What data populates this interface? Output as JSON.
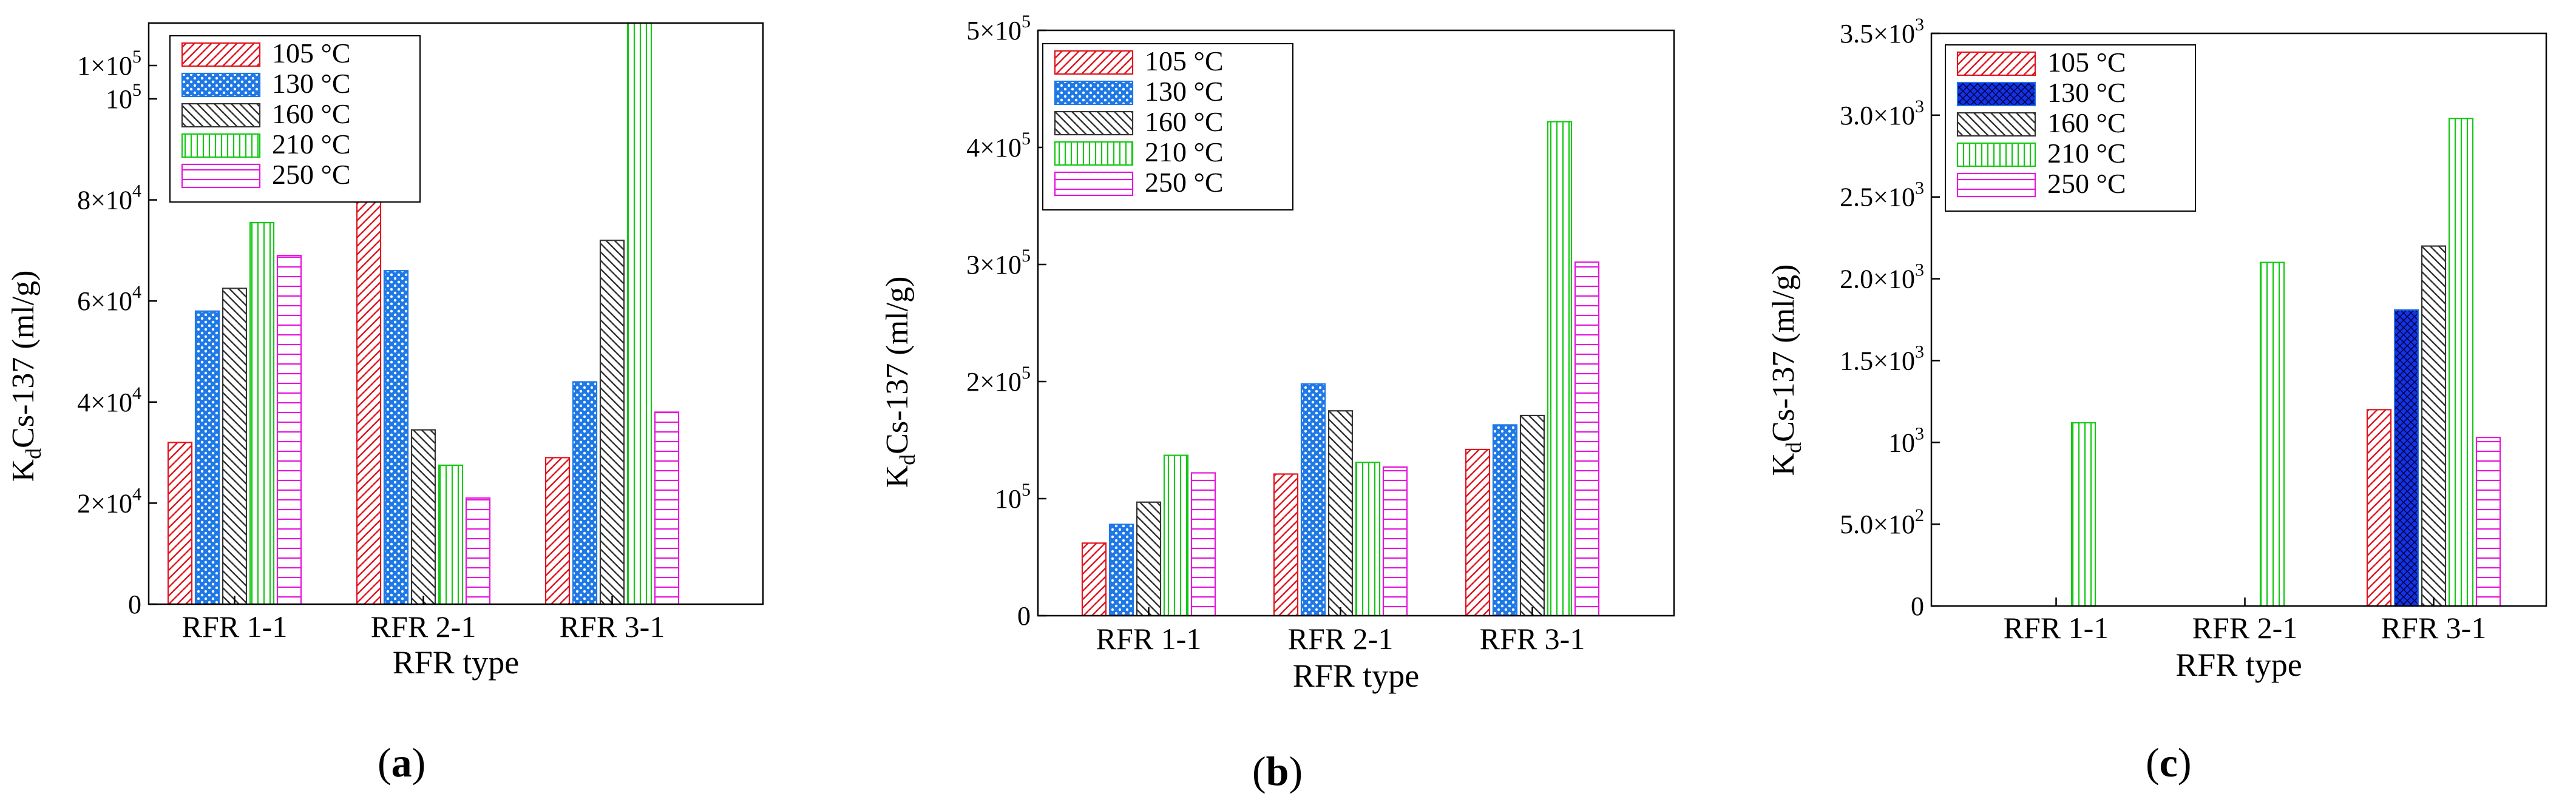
{
  "colors": {
    "c105": "#e0141e",
    "c130": "#1e78e6",
    "c160": "#333333",
    "c210": "#14c814",
    "c250": "#e614dc",
    "c130_solid_fill": "#1432e6"
  },
  "chart_data": [
    {
      "type": "bar",
      "panel_label": "a",
      "categories": [
        "RFR 1-1",
        "RFR 2-1",
        "RFR 3-1"
      ],
      "xlabel": "RFR type",
      "ylabel_main": "K",
      "ylabel_sub": "d",
      "ylabel_rest": "Cs-137 (ml/g)",
      "ylim": [
        0,
        115000
      ],
      "yticks": [
        {
          "value": 0,
          "base": "0",
          "exp": ""
        },
        {
          "value": 20000,
          "base": "2×10",
          "exp": "4"
        },
        {
          "value": 40000,
          "base": "4×10",
          "exp": "4"
        },
        {
          "value": 60000,
          "base": "6×10",
          "exp": "4"
        },
        {
          "value": 80000,
          "base": "8×10",
          "exp": "4"
        },
        {
          "value": 100000,
          "base": "10",
          "exp": "5"
        },
        {
          "value": 120000,
          "base": "1×10",
          "exp": "5"
        }
      ],
      "series": [
        {
          "name": "105 °C",
          "pattern": "diag-right",
          "color": "#e0141e",
          "values": [
            32000,
            85500,
            29000
          ]
        },
        {
          "name": "130 °C",
          "pattern": "crosshatch",
          "color": "#1e78e6",
          "values": [
            58000,
            66000,
            44000
          ]
        },
        {
          "name": "160 °C",
          "pattern": "diag-left",
          "color": "#333333",
          "values": [
            62500,
            34500,
            72000
          ]
        },
        {
          "name": "210 °C",
          "pattern": "vertical",
          "color": "#14c814",
          "values": [
            75500,
            27500,
            115000
          ]
        },
        {
          "name": "250 °C",
          "pattern": "horizontal",
          "color": "#e614dc",
          "values": [
            69000,
            21000,
            38000
          ]
        }
      ]
    },
    {
      "type": "bar",
      "panel_label": "b",
      "categories": [
        "RFR 1-1",
        "RFR 2-1",
        "RFR 3-1"
      ],
      "xlabel": "RFR type",
      "ylabel_main": "K",
      "ylabel_sub": "d",
      "ylabel_rest": "Cs-137 (ml/g)",
      "ylim": [
        0,
        500000
      ],
      "yticks": [
        {
          "value": 0,
          "base": "0",
          "exp": ""
        },
        {
          "value": 100000,
          "base": "10",
          "exp": "5"
        },
        {
          "value": 200000,
          "base": "2×10",
          "exp": "5"
        },
        {
          "value": 300000,
          "base": "3×10",
          "exp": "5"
        },
        {
          "value": 400000,
          "base": "4×10",
          "exp": "5"
        },
        {
          "value": 500000,
          "base": "5×10",
          "exp": "5"
        }
      ],
      "series": [
        {
          "name": "105 °C",
          "pattern": "diag-right",
          "color": "#e0141e",
          "values": [
            62000,
            121000,
            142000
          ]
        },
        {
          "name": "130 °C",
          "pattern": "crosshatch",
          "color": "#1e78e6",
          "values": [
            78000,
            198000,
            163000
          ]
        },
        {
          "name": "160 °C",
          "pattern": "diag-left",
          "color": "#333333",
          "values": [
            97000,
            175000,
            171000
          ]
        },
        {
          "name": "210 °C",
          "pattern": "vertical",
          "color": "#14c814",
          "values": [
            137000,
            131000,
            422000
          ]
        },
        {
          "name": "250 °C",
          "pattern": "horizontal",
          "color": "#e614dc",
          "values": [
            122000,
            127000,
            302000
          ]
        }
      ]
    },
    {
      "type": "bar",
      "panel_label": "c",
      "categories": [
        "RFR 1-1",
        "RFR 2-1",
        "RFR 3-1"
      ],
      "xlabel": "RFR type",
      "ylabel_main": "K",
      "ylabel_sub": "d",
      "ylabel_rest": "Cs-137 (ml/g)",
      "ylim": [
        0,
        3500
      ],
      "yticks": [
        {
          "value": 0,
          "base": "0",
          "exp": ""
        },
        {
          "value": 500,
          "base": "5.0×10",
          "exp": "2"
        },
        {
          "value": 1000,
          "base": "10",
          "exp": "3"
        },
        {
          "value": 1500,
          "base": "1.5×10",
          "exp": "3"
        },
        {
          "value": 2000,
          "base": "2.0×10",
          "exp": "3"
        },
        {
          "value": 2500,
          "base": "2.5×10",
          "exp": "3"
        },
        {
          "value": 3000,
          "base": "3.0×10",
          "exp": "3"
        },
        {
          "value": 3500,
          "base": "3.5×10",
          "exp": "3"
        }
      ],
      "series": [
        {
          "name": "105 °C",
          "pattern": "diag-right",
          "color": "#e0141e",
          "values": [
            0,
            0,
            1200
          ]
        },
        {
          "name": "130 °C",
          "pattern": "crosshatch-solid",
          "color": "#1e78e6",
          "values": [
            0,
            0,
            1810
          ]
        },
        {
          "name": "160 °C",
          "pattern": "diag-left",
          "color": "#333333",
          "values": [
            0,
            0,
            2200
          ]
        },
        {
          "name": "210 °C",
          "pattern": "vertical",
          "color": "#14c814",
          "values": [
            1120,
            2100,
            2980
          ]
        },
        {
          "name": "250 °C",
          "pattern": "horizontal",
          "color": "#e614dc",
          "values": [
            0,
            0,
            1030
          ]
        }
      ]
    }
  ]
}
